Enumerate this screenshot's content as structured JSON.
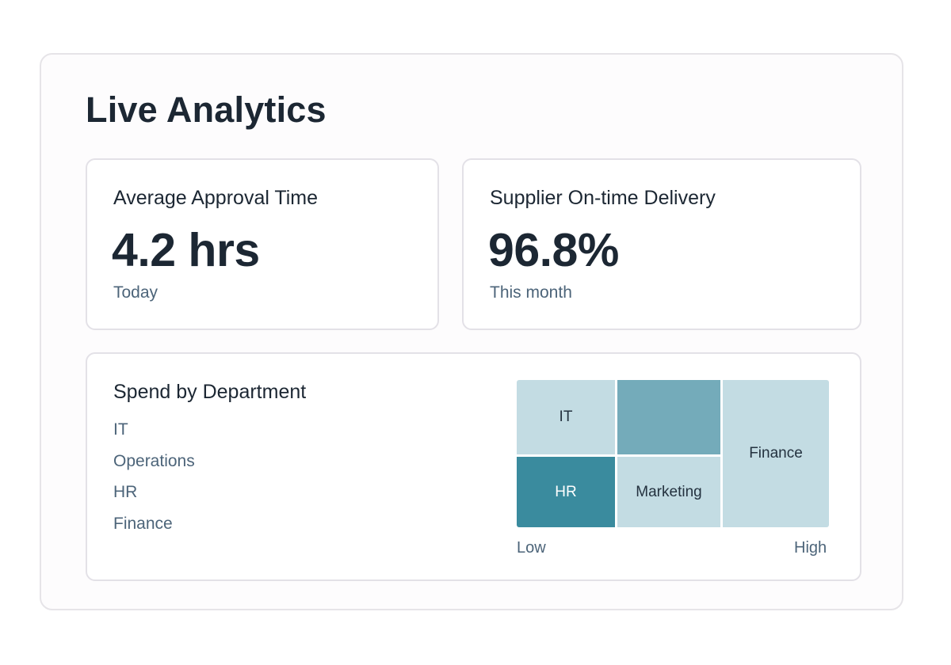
{
  "header": {
    "title": "Live Analytics"
  },
  "kpis": [
    {
      "label": "Average Approval Time",
      "value": "4.2 hrs",
      "period": "Today"
    },
    {
      "label": "Supplier On-time Delivery",
      "value": "96.8%",
      "period": "This month"
    }
  ],
  "spend": {
    "title": "Spend by Department",
    "legend": [
      "IT",
      "Operations",
      "HR",
      "Finance"
    ],
    "scale": {
      "low": "Low",
      "high": "High"
    }
  },
  "chart_data": {
    "type": "heatmap",
    "title": "Spend by Department",
    "tiles": [
      {
        "label": "IT",
        "intensity": "low",
        "color": "#c3dce3"
      },
      {
        "label": "",
        "intensity": "medium",
        "color": "#74abba"
      },
      {
        "label": "Finance",
        "intensity": "low",
        "color": "#c3dce3"
      },
      {
        "label": "HR",
        "intensity": "high",
        "color": "#3a8b9e"
      },
      {
        "label": "Marketing",
        "intensity": "low",
        "color": "#c3dce3"
      }
    ],
    "scale": [
      "Low",
      "High"
    ]
  },
  "colors": {
    "tile_low": "#c3dce3",
    "tile_medium": "#74abba",
    "tile_high": "#3a8b9e",
    "text_muted": "#4c6479"
  }
}
